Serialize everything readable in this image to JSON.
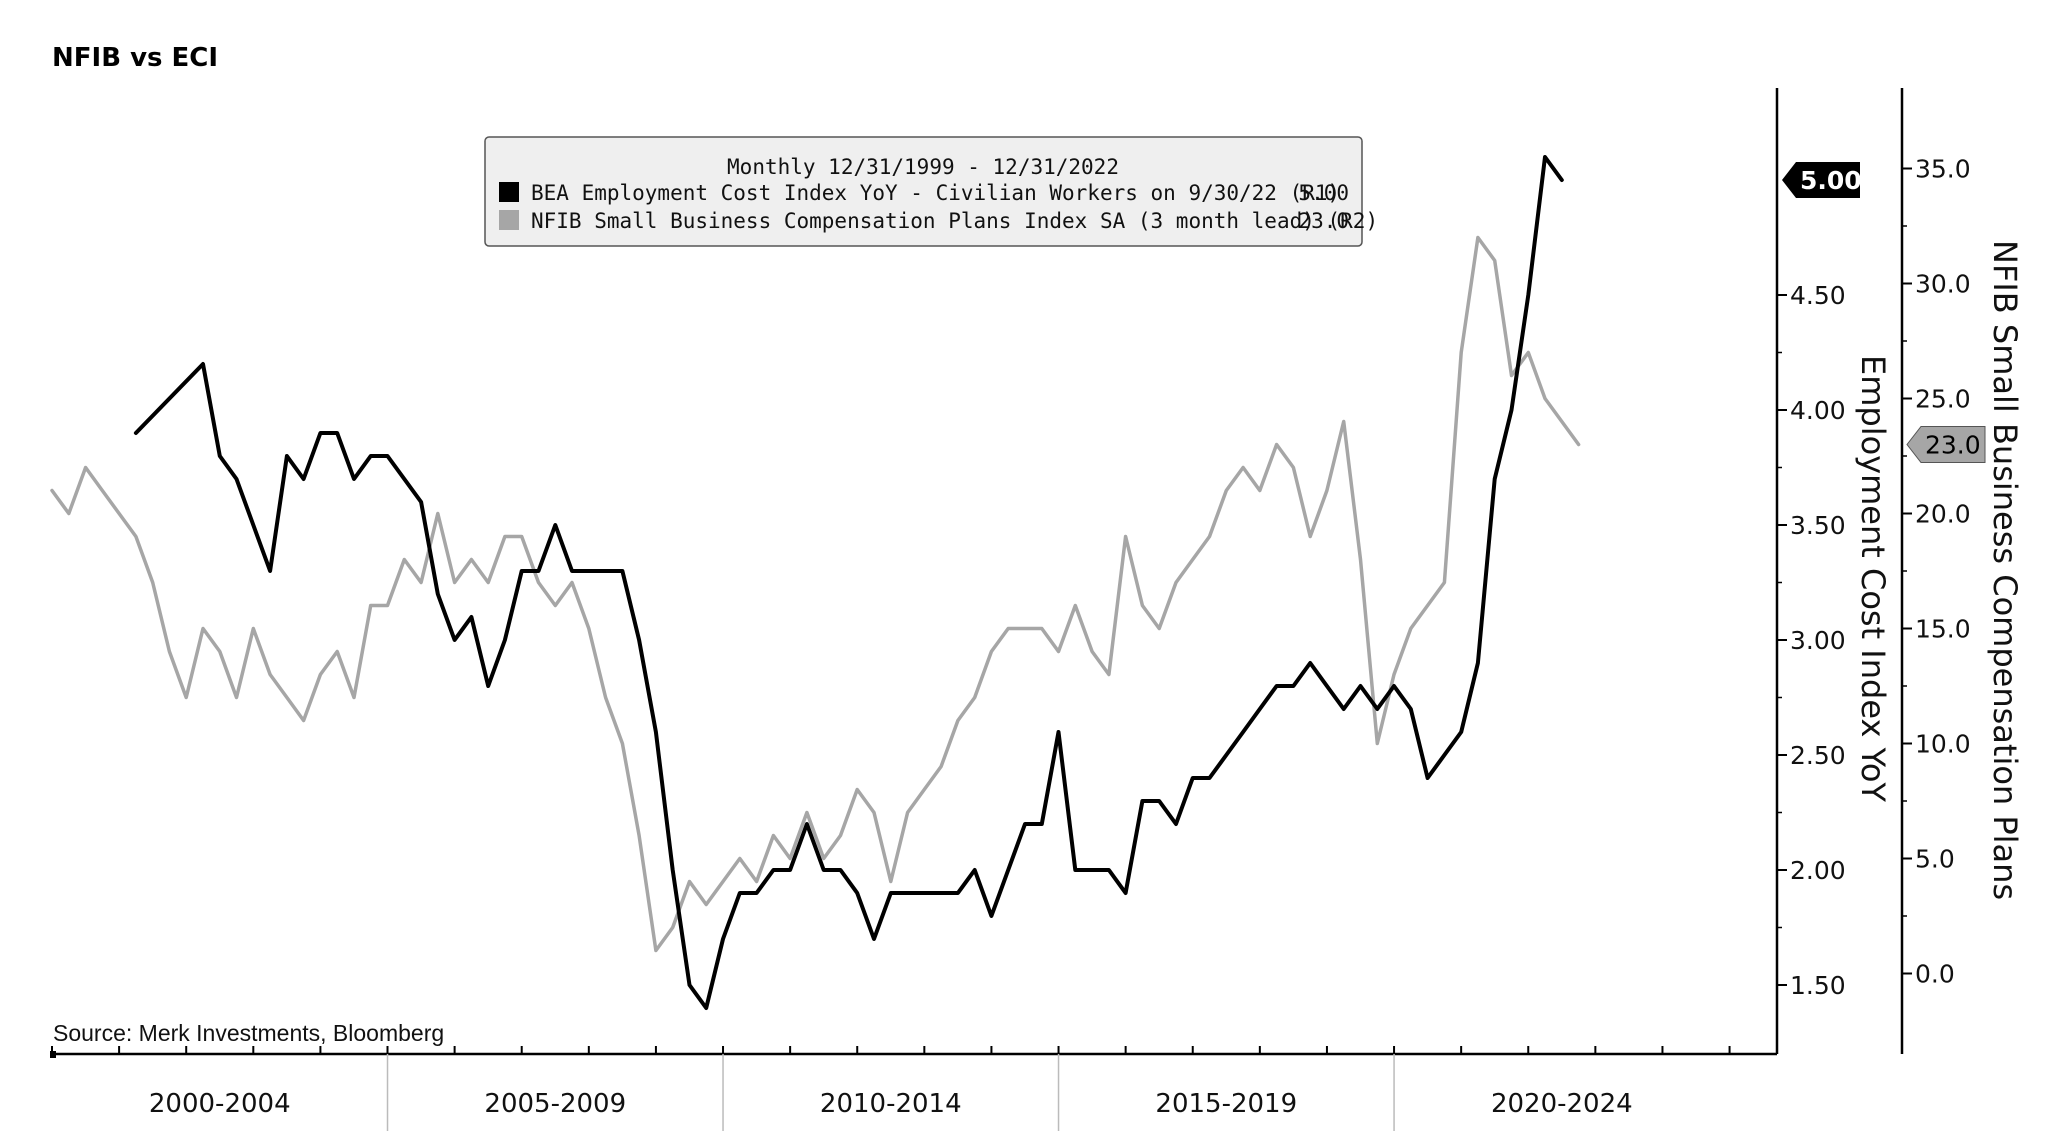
{
  "chart_data": {
    "type": "line",
    "title": "NFIB vs ECI",
    "source": "Source: Merk Investments, Bloomberg",
    "legend": {
      "placement": "top-center",
      "header": "Monthly 12/31/1999 - 12/31/2022",
      "entries": [
        {
          "label": "BEA Employment Cost Index YoY - Civilian Workers on 9/30/22 (R1)",
          "last": "5.00",
          "color": "#000000"
        },
        {
          "label": "NFIB Small Business Compensation Plans Index SA (3 month lead) (R2)",
          "last": "23.0",
          "color": "#a6a6a6"
        }
      ]
    },
    "x_categories": [
      "2000-2004",
      "2005-2009",
      "2010-2014",
      "2015-2019",
      "2020-2024"
    ],
    "x_range": [
      2000.0,
      2025.0
    ],
    "axes": {
      "r1": {
        "label": "Employment Cost Index YoY",
        "range": [
          1.2,
          5.4
        ],
        "ticks": [
          "1.50",
          "2.00",
          "2.50",
          "3.00",
          "3.50",
          "4.00",
          "4.50"
        ],
        "last_value_tag": "5.00"
      },
      "r2": {
        "label": "NFIB Small Business Compensation Plans",
        "range": [
          -3.5,
          38.5
        ],
        "ticks": [
          "0.0",
          "5.0",
          "10.0",
          "15.0",
          "20.0",
          "25.0",
          "30.0",
          "35.0"
        ],
        "last_value_tag": "23.0"
      }
    },
    "grid": false,
    "series": [
      {
        "name": "BEA Employment Cost Index YoY - Civilian Workers on 9/30/22 (R1)",
        "axis": "r1",
        "color": "#000000",
        "x": [
          2001.25,
          2002.25,
          2002.5,
          2002.75,
          2003.0,
          2003.25,
          2003.5,
          2003.75,
          2004.0,
          2004.25,
          2004.5,
          2004.75,
          2005.0,
          2005.25,
          2005.5,
          2005.75,
          2006.0,
          2006.25,
          2006.5,
          2006.75,
          2007.0,
          2007.25,
          2007.5,
          2007.75,
          2008.0,
          2008.25,
          2008.5,
          2008.75,
          2009.0,
          2009.25,
          2009.5,
          2009.75,
          2010.0,
          2010.25,
          2010.5,
          2010.75,
          2011.0,
          2011.25,
          2011.5,
          2011.75,
          2012.0,
          2012.25,
          2012.5,
          2012.75,
          2013.0,
          2013.25,
          2013.5,
          2013.75,
          2014.0,
          2014.25,
          2014.5,
          2014.75,
          2015.0,
          2015.25,
          2015.5,
          2015.75,
          2016.0,
          2016.25,
          2016.5,
          2016.75,
          2017.0,
          2017.25,
          2017.5,
          2017.75,
          2018.0,
          2018.25,
          2018.5,
          2018.75,
          2019.0,
          2019.25,
          2019.5,
          2019.75,
          2020.0,
          2020.25,
          2020.5,
          2020.75,
          2021.0,
          2021.25,
          2021.5,
          2021.75,
          2022.0,
          2022.25,
          2022.5
        ],
        "values": [
          3.9,
          4.2,
          3.8,
          3.7,
          3.5,
          3.3,
          3.8,
          3.7,
          3.9,
          3.9,
          3.7,
          3.8,
          3.8,
          3.7,
          3.6,
          3.2,
          3.0,
          3.1,
          2.8,
          3.0,
          3.3,
          3.3,
          3.5,
          3.3,
          3.3,
          3.3,
          3.3,
          3.0,
          2.6,
          2.0,
          1.5,
          1.4,
          1.7,
          1.9,
          1.9,
          2.0,
          2.0,
          2.2,
          2.0,
          2.0,
          1.9,
          1.7,
          1.9,
          1.9,
          1.9,
          1.9,
          1.9,
          2.0,
          1.8,
          2.0,
          2.2,
          2.2,
          2.6,
          2.0,
          2.0,
          2.0,
          1.9,
          2.3,
          2.3,
          2.2,
          2.4,
          2.4,
          2.5,
          2.6,
          2.7,
          2.8,
          2.8,
          2.9,
          2.8,
          2.7,
          2.8,
          2.7,
          2.8,
          2.7,
          2.4,
          2.5,
          2.6,
          2.9,
          3.7,
          4.0,
          4.5,
          5.1,
          5.0
        ]
      },
      {
        "name": "NFIB Small Business Compensation Plans Index SA (3 month lead) (R2)",
        "axis": "r2",
        "color": "#a6a6a6",
        "x": [
          2000.0,
          2000.25,
          2000.5,
          2000.75,
          2001.0,
          2001.25,
          2001.5,
          2001.75,
          2002.0,
          2002.25,
          2002.5,
          2002.75,
          2003.0,
          2003.25,
          2003.5,
          2003.75,
          2004.0,
          2004.25,
          2004.5,
          2004.75,
          2005.0,
          2005.25,
          2005.5,
          2005.75,
          2006.0,
          2006.25,
          2006.5,
          2006.75,
          2007.0,
          2007.25,
          2007.5,
          2007.75,
          2008.0,
          2008.25,
          2008.5,
          2008.75,
          2009.0,
          2009.25,
          2009.5,
          2009.75,
          2010.0,
          2010.25,
          2010.5,
          2010.75,
          2011.0,
          2011.25,
          2011.5,
          2011.75,
          2012.0,
          2012.25,
          2012.5,
          2012.75,
          2013.0,
          2013.25,
          2013.5,
          2013.75,
          2014.0,
          2014.25,
          2014.5,
          2014.75,
          2015.0,
          2015.25,
          2015.5,
          2015.75,
          2016.0,
          2016.25,
          2016.5,
          2016.75,
          2017.0,
          2017.25,
          2017.5,
          2017.75,
          2018.0,
          2018.25,
          2018.5,
          2018.75,
          2019.0,
          2019.25,
          2019.5,
          2019.75,
          2020.0,
          2020.25,
          2020.5,
          2020.75,
          2021.0,
          2021.25,
          2021.5,
          2021.75,
          2022.0,
          2022.25,
          2022.5,
          2022.75
        ],
        "values": [
          21.0,
          20.0,
          22.0,
          21.0,
          20.0,
          19.0,
          17.0,
          14.0,
          12.0,
          15.0,
          14.0,
          12.0,
          15.0,
          13.0,
          12.0,
          11.0,
          13.0,
          14.0,
          12.0,
          16.0,
          16.0,
          18.0,
          17.0,
          20.0,
          17.0,
          18.0,
          17.0,
          19.0,
          19.0,
          17.0,
          16.0,
          17.0,
          15.0,
          12.0,
          10.0,
          6.0,
          1.0,
          2.0,
          4.0,
          3.0,
          4.0,
          5.0,
          4.0,
          6.0,
          5.0,
          7.0,
          5.0,
          6.0,
          8.0,
          7.0,
          4.0,
          7.0,
          8.0,
          9.0,
          11.0,
          12.0,
          14.0,
          15.0,
          15.0,
          15.0,
          14.0,
          16.0,
          14.0,
          13.0,
          19.0,
          16.0,
          15.0,
          17.0,
          18.0,
          19.0,
          21.0,
          22.0,
          21.0,
          23.0,
          22.0,
          19.0,
          21.0,
          24.0,
          18.0,
          10.0,
          13.0,
          15.0,
          16.0,
          17.0,
          27.0,
          32.0,
          31.0,
          26.0,
          27.0,
          25.0,
          24.0,
          23.0
        ]
      }
    ]
  }
}
